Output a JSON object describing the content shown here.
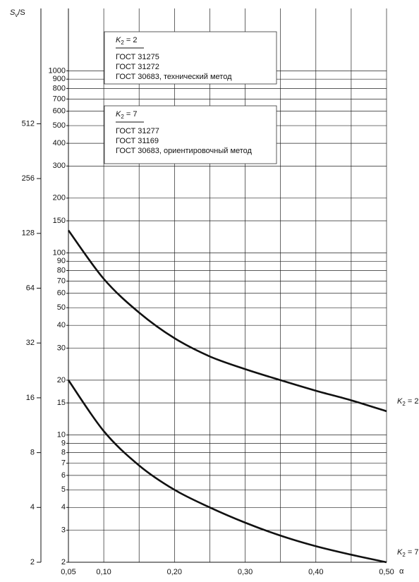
{
  "chart_data": {
    "type": "line",
    "ylabel": {
      "base": "S",
      "sub": "v",
      "rest": "/S"
    },
    "xlabel": "α",
    "log_scale": true,
    "grid": true,
    "x": [
      0.05,
      0.1,
      0.15,
      0.2,
      0.25,
      0.3,
      0.35,
      0.4,
      0.45,
      0.5
    ],
    "xlim": [
      0.05,
      0.5
    ],
    "xticks": [
      {
        "value": 0.05,
        "label": "0,05"
      },
      {
        "value": 0.1,
        "label": "0,10"
      },
      {
        "value": 0.2,
        "label": "0,20"
      },
      {
        "value": 0.3,
        "label": "0,30"
      },
      {
        "value": 0.4,
        "label": "0,40"
      },
      {
        "value": 0.5,
        "label": "0,50"
      }
    ],
    "xgrid": [
      0.05,
      0.1,
      0.15,
      0.2,
      0.25,
      0.3,
      0.35,
      0.4,
      0.45,
      0.5
    ],
    "ylim": [
      2,
      2200
    ],
    "yticks": [
      2,
      3,
      4,
      5,
      6,
      7,
      8,
      9,
      10,
      15,
      20,
      30,
      40,
      50,
      60,
      70,
      80,
      90,
      100,
      150,
      200,
      300,
      400,
      500,
      600,
      700,
      800,
      900,
      1000
    ],
    "y2lim": [
      2,
      2200
    ],
    "y2ticks": [
      2,
      4,
      8,
      16,
      32,
      64,
      128,
      256,
      512
    ],
    "series": [
      {
        "name": {
          "base": "K",
          "sub": "2",
          "rest": " = 2"
        },
        "color": "#111111",
        "values": [
          133,
          72,
          47,
          34,
          27,
          23,
          20,
          17.5,
          15.5,
          13.5
        ]
      },
      {
        "name": {
          "base": "K",
          "sub": "2",
          "rest": " = 7"
        },
        "color": "#111111",
        "values": [
          20,
          10.5,
          6.8,
          5,
          4,
          3.3,
          2.8,
          2.45,
          2.2,
          2.0
        ]
      }
    ],
    "legend_boxes": [
      {
        "key": {
          "base": "K",
          "sub": "2",
          "rest": " = 2"
        },
        "lines": [
          "ГОСТ 31275",
          "ГОСТ 31272",
          "ГОСТ 30683, технический метод"
        ]
      },
      {
        "key": {
          "base": "K",
          "sub": "2",
          "rest": " = 7"
        },
        "lines": [
          "ГОСТ 31277",
          "ГОСТ 31169",
          "ГОСТ 30683, ориентировочный метод"
        ]
      }
    ]
  }
}
